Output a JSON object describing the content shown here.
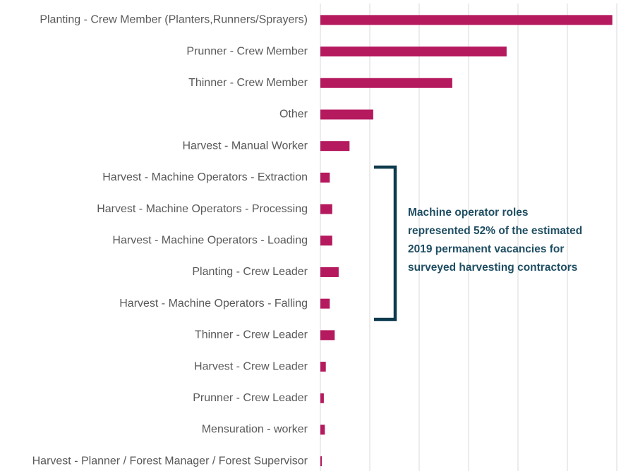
{
  "chart_data": {
    "type": "barh",
    "categories": [
      "Planting - Crew Member (Planters,Runners/Sprayers)",
      "Prunner - Crew Member",
      "Thinner - Crew Member",
      "Other",
      "Harvest - Manual Worker",
      "Harvest - Machine Operators - Extraction",
      "Harvest - Machine Operators - Processing",
      "Harvest - Machine Operators - Loading",
      "Planting - Crew Leader",
      "Harvest - Machine Operators - Falling",
      "Thinner - Crew Leader",
      "Harvest - Crew Leader",
      "Prunner - Crew Leader",
      "Mensuration - worker",
      "Harvest - Planner / Forest Manager / Forest Supervisor"
    ],
    "values": [
      5.91,
      3.77,
      2.67,
      1.07,
      0.59,
      0.19,
      0.24,
      0.24,
      0.37,
      0.19,
      0.29,
      0.11,
      0.07,
      0.09,
      0.03
    ],
    "color": "#b5195e",
    "xlim": [
      0,
      6
    ],
    "xticks": [
      0,
      1,
      2,
      3,
      4,
      5,
      6
    ],
    "grid": true,
    "annotation": [
      "Machine operator roles",
      "represented 52% of the estimated",
      "2019 permanent vacancies for",
      "surveyed harvesting contractors"
    ]
  }
}
